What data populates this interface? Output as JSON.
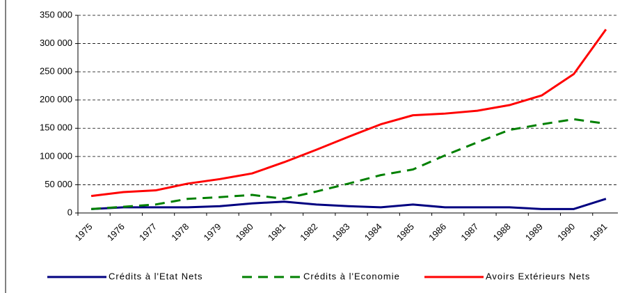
{
  "chart_data": {
    "type": "line",
    "categories": [
      "1975",
      "1976",
      "1977",
      "1978",
      "1979",
      "1980",
      "1981",
      "1982",
      "1983",
      "1984",
      "1985",
      "1986",
      "1987",
      "1988",
      "1989",
      "1990",
      "1991"
    ],
    "series": [
      {
        "name": "Crédits à l'Etat Nets",
        "color": "#000080",
        "dash": "solid",
        "values": [
          7000,
          10000,
          10000,
          10000,
          12000,
          17000,
          20000,
          15000,
          12000,
          10000,
          15000,
          10000,
          10000,
          10000,
          7000,
          7000,
          25000
        ]
      },
      {
        "name": "Crédits à l'Economie",
        "color": "#008000",
        "dash": "dashed",
        "values": [
          7000,
          11000,
          15000,
          25000,
          28000,
          32000,
          25000,
          38000,
          52000,
          67000,
          77000,
          102000,
          125000,
          147000,
          157000,
          166000,
          158000
        ]
      },
      {
        "name": "Avoirs Extérieurs Nets",
        "color": "#ff0000",
        "dash": "solid",
        "values": [
          30000,
          37000,
          40000,
          52000,
          60000,
          70000,
          90000,
          112000,
          135000,
          157000,
          173000,
          176000,
          181000,
          191000,
          208000,
          246000,
          325000
        ]
      }
    ],
    "ylim": [
      0,
      350000
    ],
    "yticks": [
      0,
      {
        "value": 50000,
        "label": "50 000"
      },
      {
        "value": 100000,
        "label": "100 000"
      },
      {
        "value": 150000,
        "label": "150 000"
      },
      {
        "value": 200000,
        "label": "200 000"
      },
      {
        "value": 250000,
        "label": "250 000"
      },
      {
        "value": 300000,
        "label": "300 000"
      },
      {
        "value": 350000,
        "label": "350 000"
      }
    ],
    "grid": true,
    "legend": "bottom"
  }
}
